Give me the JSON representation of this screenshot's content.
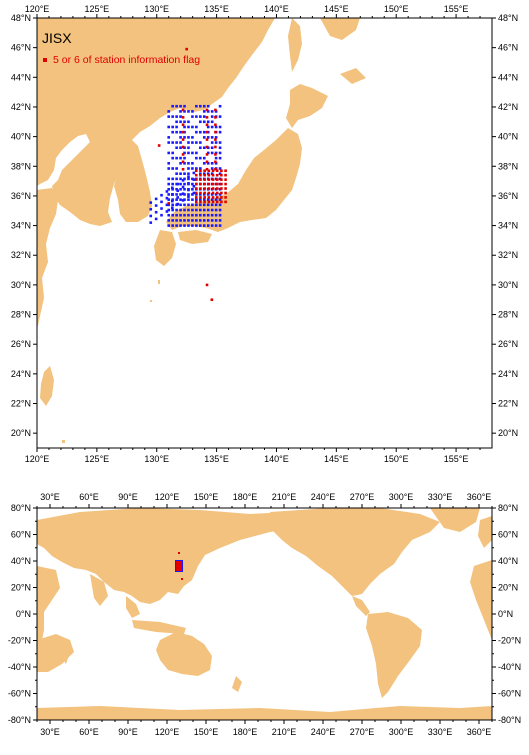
{
  "map_top": {
    "title": "JISX",
    "legend_label": "5 or 6 of station information flag",
    "lon_labels": [
      "120°E",
      "125°E",
      "130°E",
      "135°E",
      "140°E",
      "145°E",
      "150°E",
      "155°E"
    ],
    "lat_labels": [
      "20°N",
      "22°N",
      "24°N",
      "26°N",
      "28°N",
      "30°N",
      "32°N",
      "34°N",
      "36°N",
      "38°N",
      "40°N",
      "42°N",
      "44°N",
      "46°N",
      "48°N"
    ],
    "lon_range": [
      120,
      158
    ],
    "lat_range": [
      19,
      48
    ]
  },
  "map_bottom": {
    "lon_labels": [
      "30°E",
      "60°E",
      "90°E",
      "120°E",
      "150°E",
      "180°E",
      "210°E",
      "240°E",
      "270°E",
      "300°E",
      "330°E",
      "360°E"
    ],
    "lat_labels": [
      "80°N",
      "60°N",
      "40°N",
      "20°N",
      "0°N",
      "-20°N",
      "-40°N",
      "-60°N",
      "-80°N"
    ],
    "lon_range": [
      20,
      370
    ],
    "lat_range": [
      -80,
      80
    ]
  },
  "colors": {
    "land": "#f2c27e",
    "sea": "#ffffff",
    "station_blue": "#1a1aff",
    "station_flag_red": "#e00000"
  }
}
